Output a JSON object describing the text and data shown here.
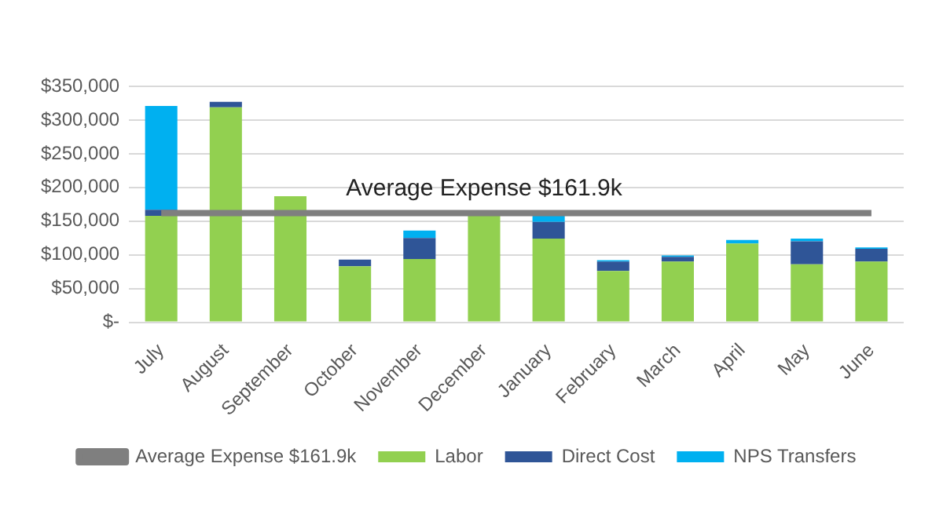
{
  "chart_data": {
    "type": "bar",
    "stacked": true,
    "categories": [
      "July",
      "August",
      "September",
      "October",
      "November",
      "December",
      "January",
      "February",
      "March",
      "April",
      "May",
      "June"
    ],
    "series": [
      {
        "name": "Labor",
        "color": "#92d050",
        "values": [
          158000,
          319000,
          187000,
          83000,
          94000,
          163000,
          124000,
          76000,
          90000,
          117000,
          86000,
          90000
        ]
      },
      {
        "name": "Direct Cost",
        "color": "#2f5597",
        "values": [
          9000,
          8000,
          null,
          10000,
          31000,
          null,
          25000,
          14000,
          7000,
          null,
          34000,
          19000
        ]
      },
      {
        "name": "NPS Transfers",
        "color": "#00b0f0",
        "values": [
          154000,
          null,
          null,
          null,
          11000,
          null,
          9000,
          2000,
          2000,
          5000,
          4000,
          2000
        ]
      },
      {
        "name": "Average Expense $161.9k",
        "type": "line",
        "color": "#7f7f7f",
        "values": [
          161900,
          161900,
          161900,
          161900,
          161900,
          161900,
          161900,
          161900,
          161900,
          161900,
          161900,
          161900
        ]
      }
    ],
    "ylim": [
      0,
      350000
    ],
    "yticks": [
      {
        "value": 0,
        "label": "$-"
      },
      {
        "value": 50000,
        "label": "$50,000"
      },
      {
        "value": 100000,
        "label": "$100,000"
      },
      {
        "value": 150000,
        "label": "$150,000"
      },
      {
        "value": 200000,
        "label": "$200,000"
      },
      {
        "value": 250000,
        "label": "$250,000"
      },
      {
        "value": 300000,
        "label": "$300,000"
      },
      {
        "value": 350000,
        "label": "$350,000"
      }
    ],
    "grid": "y",
    "legend": "bottom",
    "marker": "none",
    "annotations": [
      {
        "text": "Average Expense $161.9k",
        "x": "December",
        "y": 161900
      }
    ]
  }
}
